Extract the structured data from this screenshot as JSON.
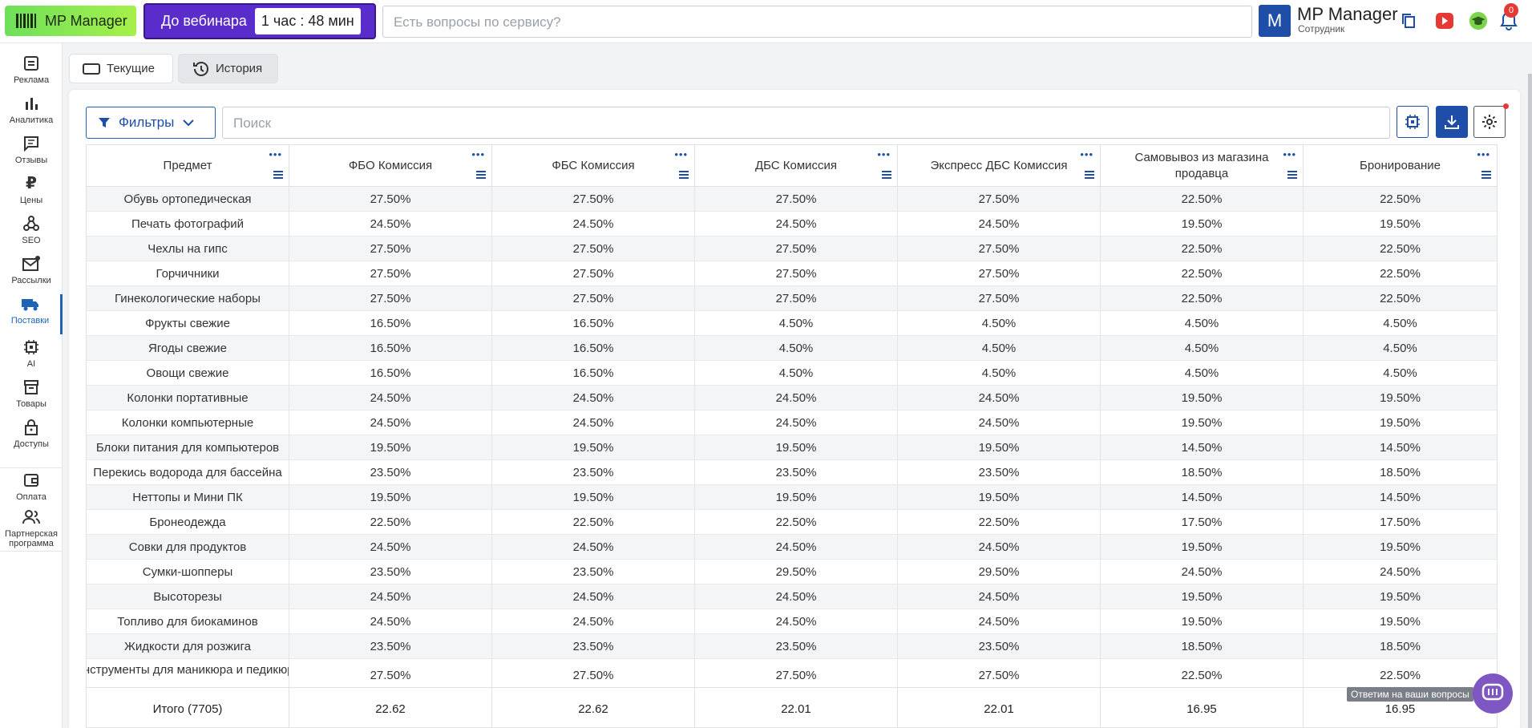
{
  "topbar": {
    "logo_label": "MP Manager",
    "webinar_label": "До вебинара",
    "webinar_timer": "1 час : 48 мин",
    "search_placeholder": "Есть вопросы по сервису?",
    "avatar_letter": "M",
    "user_name": "MP Manager",
    "user_role": "Сотрудник",
    "notifications_count": "0",
    "accent_color": "#1e4ea8"
  },
  "sidebar": {
    "items": [
      {
        "label": "Реклама",
        "icon": "ad-icon"
      },
      {
        "label": "Аналитика",
        "icon": "bar-chart-icon"
      },
      {
        "label": "Отзывы",
        "icon": "comment-icon"
      },
      {
        "label": "Цены",
        "icon": "ruble-icon"
      },
      {
        "label": "SEO",
        "icon": "seo-icon"
      },
      {
        "label": "Рассылки",
        "icon": "mail-icon"
      },
      {
        "label": "Поставки",
        "icon": "truck-icon"
      },
      {
        "label": "AI",
        "icon": "chip-icon"
      },
      {
        "label": "Товары",
        "icon": "box-icon"
      },
      {
        "label": "Доступы",
        "icon": "lock-icon"
      },
      {
        "label": "Оплата",
        "icon": "wallet-icon"
      },
      {
        "label": "Партнерская программа",
        "icon": "partners-icon"
      }
    ],
    "active": "Поставки"
  },
  "tabs": {
    "current": "Текущие",
    "history": "История"
  },
  "toolbar": {
    "filters_label": "Фильтры",
    "search_placeholder": "Поиск"
  },
  "table": {
    "headers": [
      "Предмет",
      "ФБО Комиссия",
      "ФБС Комиссия",
      "ДБС Комиссия",
      "Экспресс ДБС Комиссия",
      "Самовывоз из магазина продавца",
      "Бронирование"
    ],
    "rows": [
      [
        "Обувь ортопедическая",
        "27.50%",
        "27.50%",
        "27.50%",
        "27.50%",
        "22.50%",
        "22.50%"
      ],
      [
        "Печать фотографий",
        "24.50%",
        "24.50%",
        "24.50%",
        "24.50%",
        "19.50%",
        "19.50%"
      ],
      [
        "Чехлы на гипс",
        "27.50%",
        "27.50%",
        "27.50%",
        "27.50%",
        "22.50%",
        "22.50%"
      ],
      [
        "Горчичники",
        "27.50%",
        "27.50%",
        "27.50%",
        "27.50%",
        "22.50%",
        "22.50%"
      ],
      [
        "Гинекологические наборы",
        "27.50%",
        "27.50%",
        "27.50%",
        "27.50%",
        "22.50%",
        "22.50%"
      ],
      [
        "Фрукты свежие",
        "16.50%",
        "16.50%",
        "4.50%",
        "4.50%",
        "4.50%",
        "4.50%"
      ],
      [
        "Ягоды свежие",
        "16.50%",
        "16.50%",
        "4.50%",
        "4.50%",
        "4.50%",
        "4.50%"
      ],
      [
        "Овощи свежие",
        "16.50%",
        "16.50%",
        "4.50%",
        "4.50%",
        "4.50%",
        "4.50%"
      ],
      [
        "Колонки портативные",
        "24.50%",
        "24.50%",
        "24.50%",
        "24.50%",
        "19.50%",
        "19.50%"
      ],
      [
        "Колонки компьютерные",
        "24.50%",
        "24.50%",
        "24.50%",
        "24.50%",
        "19.50%",
        "19.50%"
      ],
      [
        "Блоки питания для компьютеров",
        "19.50%",
        "19.50%",
        "19.50%",
        "19.50%",
        "14.50%",
        "14.50%"
      ],
      [
        "Перекись водорода для бассейна",
        "23.50%",
        "23.50%",
        "23.50%",
        "23.50%",
        "18.50%",
        "18.50%"
      ],
      [
        "Неттопы и Мини ПК",
        "19.50%",
        "19.50%",
        "19.50%",
        "19.50%",
        "14.50%",
        "14.50%"
      ],
      [
        "Бронеодежда",
        "22.50%",
        "22.50%",
        "22.50%",
        "22.50%",
        "17.50%",
        "17.50%"
      ],
      [
        "Совки для продуктов",
        "24.50%",
        "24.50%",
        "24.50%",
        "24.50%",
        "19.50%",
        "19.50%"
      ],
      [
        "Сумки-шопперы",
        "23.50%",
        "23.50%",
        "29.50%",
        "29.50%",
        "24.50%",
        "24.50%"
      ],
      [
        "Высоторезы",
        "24.50%",
        "24.50%",
        "24.50%",
        "24.50%",
        "19.50%",
        "19.50%"
      ],
      [
        "Топливо для биокаминов",
        "24.50%",
        "24.50%",
        "24.50%",
        "24.50%",
        "19.50%",
        "19.50%"
      ],
      [
        "Жидкости для розжига",
        "23.50%",
        "23.50%",
        "23.50%",
        "23.50%",
        "18.50%",
        "18.50%"
      ],
      [
        "Инструменты для маникюра и педикюра",
        "27.50%",
        "27.50%",
        "27.50%",
        "27.50%",
        "22.50%",
        "22.50%"
      ]
    ],
    "footer": [
      "Итого (7705)",
      "22.62",
      "22.62",
      "22.01",
      "22.01",
      "16.95",
      "16.95"
    ]
  },
  "chat": {
    "tooltip": "Ответим на ваши вопросы"
  }
}
